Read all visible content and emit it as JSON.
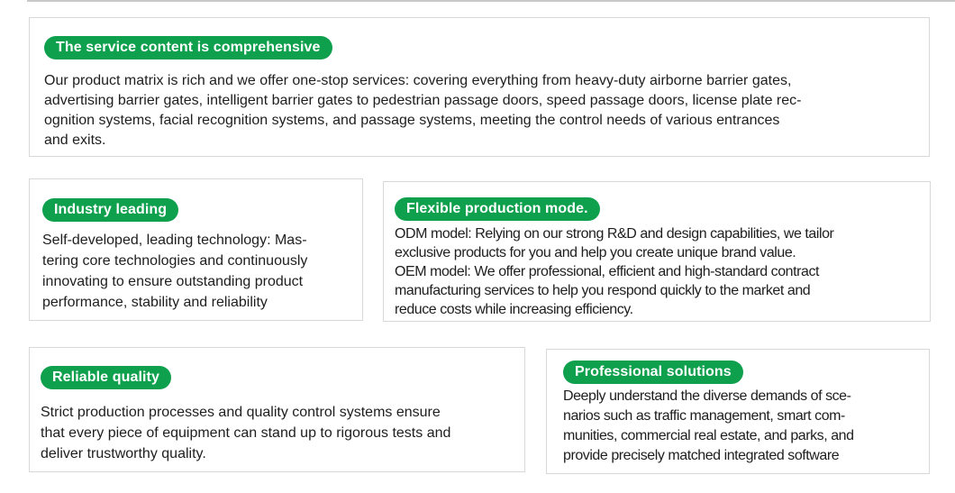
{
  "theme": {
    "accent_green": "#0fa04e",
    "card_border": "#d8d8d8",
    "top_line": "#c9c9c9",
    "text_color": "#1e1e1e"
  },
  "cards": [
    {
      "badge": "The service content is comprehensive",
      "text": "Our product matrix is rich and we offer one-stop services: covering everything from heavy-duty airborne barrier gates,\nadvertising barrier gates, intelligent barrier gates to pedestrian passage doors, speed passage doors, license plate rec-\nognition systems, facial recognition systems, and passage systems, meeting the control needs of various entrances\nand exits."
    },
    {
      "badge": "Industry leading",
      "text": "Self-developed, leading technology: Mas-\ntering core technologies and continuously\ninnovating to ensure outstanding product\nperformance, stability and reliability"
    },
    {
      "badge": "Flexible production mode.",
      "text": "ODM model: Relying on our strong R&D and design capabilities, we tailor\nexclusive products for you and help you create unique brand value.\nOEM model: We offer professional, efficient and high-standard contract\nmanufacturing services to help you respond quickly to the market and\nreduce costs while increasing efficiency."
    },
    {
      "badge": "Reliable quality",
      "text": "Strict production processes and quality control systems ensure\nthat every piece of equipment can stand up to rigorous tests and\ndeliver trustworthy quality."
    },
    {
      "badge": "Professional solutions",
      "text": "Deeply understand the diverse demands of sce-\nnarios such as traffic management, smart com-\nmunities, commercial real estate, and parks, and\nprovide precisely matched integrated software"
    }
  ]
}
